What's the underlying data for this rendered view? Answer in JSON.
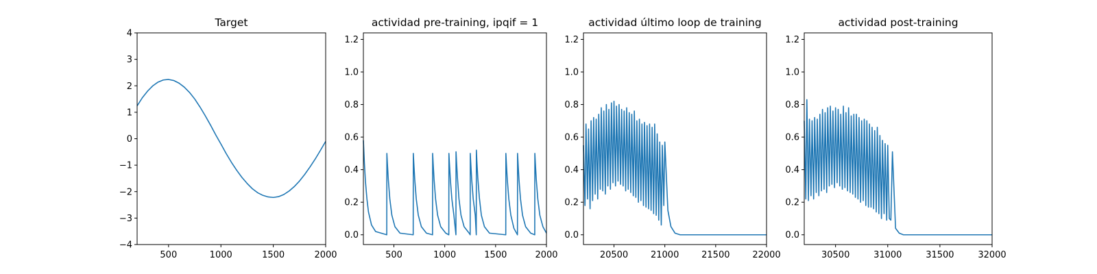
{
  "figure": {
    "background": "#ffffff"
  },
  "chart_data": [
    {
      "type": "line",
      "title": "Target",
      "xlim": [
        200,
        2000
      ],
      "ylim": [
        -4,
        4
      ],
      "x_ticks": [
        500,
        1000,
        1500,
        2000
      ],
      "y_ticks": [
        -4,
        -3,
        -2,
        -1,
        0,
        1,
        2,
        3,
        4
      ],
      "x_tick_labels": [
        "500",
        "1000",
        "1500",
        "2000"
      ],
      "y_tick_labels": [
        "−4",
        "−3",
        "−2",
        "−1",
        "0",
        "1",
        "2",
        "3",
        "4"
      ],
      "series": [
        {
          "color": "#1f77b4",
          "x": [
            200,
            250,
            300,
            350,
            400,
            450,
            500,
            550,
            600,
            650,
            700,
            750,
            800,
            850,
            900,
            950,
            1000,
            1050,
            1100,
            1150,
            1200,
            1250,
            1300,
            1350,
            1400,
            1450,
            1500,
            1550,
            1600,
            1650,
            1700,
            1750,
            1800,
            1850,
            1900,
            1950,
            2000
          ],
          "values": [
            1.24,
            1.55,
            1.8,
            2.0,
            2.14,
            2.22,
            2.24,
            2.2,
            2.1,
            1.95,
            1.75,
            1.5,
            1.2,
            0.87,
            0.52,
            0.15,
            -0.2,
            -0.56,
            -0.89,
            -1.19,
            -1.46,
            -1.69,
            -1.89,
            -2.04,
            -2.14,
            -2.2,
            -2.22,
            -2.19,
            -2.11,
            -1.98,
            -1.81,
            -1.6,
            -1.35,
            -1.07,
            -0.77,
            -0.44,
            -0.1
          ]
        }
      ]
    },
    {
      "type": "line",
      "title": "actividad pre-training, ipqif = 1",
      "xlim": [
        200,
        2000
      ],
      "ylim": [
        -0.06,
        1.24
      ],
      "x_ticks": [
        500,
        1000,
        1500,
        2000
      ],
      "y_ticks": [
        0,
        0.2,
        0.4,
        0.6,
        0.8,
        1.0,
        1.2
      ],
      "x_tick_labels": [
        "500",
        "1000",
        "1500",
        "2000"
      ],
      "y_tick_labels": [
        "0.0",
        "0.2",
        "0.4",
        "0.6",
        "0.8",
        "1.0",
        "1.2"
      ],
      "series": [
        {
          "color": "#1f77b4",
          "x": [
            200,
            210,
            220,
            235,
            250,
            280,
            320,
            430,
            431,
            436,
            445,
            460,
            480,
            510,
            560,
            690,
            691,
            696,
            705,
            720,
            740,
            770,
            820,
            880,
            881,
            886,
            895,
            910,
            930,
            960,
            1010,
            1040,
            1041,
            1046,
            1055,
            1070,
            1090,
            1110,
            1111,
            1116,
            1125,
            1140,
            1160,
            1190,
            1240,
            1250,
            1251,
            1256,
            1265,
            1280,
            1300,
            1310,
            1311,
            1316,
            1325,
            1340,
            1360,
            1390,
            1440,
            1600,
            1601,
            1606,
            1615,
            1630,
            1650,
            1680,
            1715,
            1716,
            1721,
            1730,
            1745,
            1765,
            1795,
            1845,
            1885,
            1886,
            1891,
            1900,
            1915,
            1935,
            1965,
            2000
          ],
          "values": [
            0.58,
            0.44,
            0.33,
            0.22,
            0.14,
            0.06,
            0.02,
            0.0,
            0.5,
            0.44,
            0.34,
            0.22,
            0.12,
            0.05,
            0.01,
            0.0,
            0.5,
            0.44,
            0.34,
            0.22,
            0.12,
            0.05,
            0.01,
            0.0,
            0.5,
            0.44,
            0.34,
            0.22,
            0.12,
            0.05,
            0.01,
            0.0,
            0.5,
            0.44,
            0.34,
            0.22,
            0.12,
            0.0,
            0.51,
            0.45,
            0.35,
            0.22,
            0.12,
            0.05,
            0.01,
            0.0,
            0.5,
            0.44,
            0.34,
            0.22,
            0.12,
            0.0,
            0.52,
            0.45,
            0.35,
            0.23,
            0.12,
            0.05,
            0.01,
            0.0,
            0.5,
            0.44,
            0.34,
            0.22,
            0.12,
            0.04,
            0.0,
            0.5,
            0.44,
            0.34,
            0.22,
            0.12,
            0.05,
            0.01,
            0.0,
            0.5,
            0.44,
            0.34,
            0.22,
            0.12,
            0.05,
            0.01
          ]
        }
      ]
    },
    {
      "type": "line",
      "title": "actividad último loop de training",
      "xlim": [
        20200,
        22000
      ],
      "ylim": [
        -0.06,
        1.24
      ],
      "x_ticks": [
        20500,
        21000,
        21500,
        22000
      ],
      "y_ticks": [
        0,
        0.2,
        0.4,
        0.6,
        0.8,
        1.0,
        1.2
      ],
      "x_tick_labels": [
        "20500",
        "21000",
        "21500",
        "22000"
      ],
      "y_tick_labels": [
        "0.0",
        "0.2",
        "0.4",
        "0.6",
        "0.8",
        "1.0",
        "1.2"
      ],
      "series": [
        {
          "color": "#1f77b4",
          "x": [
            20200,
            20215,
            20225,
            20240,
            20250,
            20265,
            20275,
            20290,
            20300,
            20315,
            20325,
            20340,
            20350,
            20365,
            20375,
            20390,
            20400,
            20415,
            20425,
            20440,
            20450,
            20465,
            20475,
            20490,
            20500,
            20515,
            20525,
            20540,
            20550,
            20565,
            20575,
            20590,
            20600,
            20615,
            20625,
            20640,
            20650,
            20665,
            20675,
            20690,
            20700,
            20715,
            20725,
            20740,
            20750,
            20765,
            20775,
            20790,
            20800,
            20815,
            20825,
            20840,
            20850,
            20865,
            20875,
            20890,
            20900,
            20915,
            20925,
            20940,
            20950,
            20965,
            20975,
            20990,
            21000,
            21030,
            21060,
            21100,
            21150,
            21200,
            22000
          ],
          "values": [
            0.55,
            0.18,
            0.68,
            0.22,
            0.65,
            0.16,
            0.7,
            0.21,
            0.72,
            0.25,
            0.71,
            0.22,
            0.74,
            0.28,
            0.78,
            0.27,
            0.76,
            0.25,
            0.8,
            0.3,
            0.77,
            0.28,
            0.81,
            0.32,
            0.82,
            0.3,
            0.79,
            0.33,
            0.8,
            0.31,
            0.77,
            0.3,
            0.76,
            0.27,
            0.78,
            0.28,
            0.75,
            0.26,
            0.74,
            0.24,
            0.76,
            0.23,
            0.7,
            0.2,
            0.71,
            0.21,
            0.68,
            0.18,
            0.69,
            0.17,
            0.67,
            0.16,
            0.68,
            0.15,
            0.66,
            0.13,
            0.68,
            0.12,
            0.62,
            0.09,
            0.57,
            0.06,
            0.55,
            0.18,
            0.57,
            0.15,
            0.05,
            0.01,
            0.0,
            0.0,
            0.0
          ]
        }
      ]
    },
    {
      "type": "line",
      "title": "actividad post-training",
      "xlim": [
        30200,
        32000
      ],
      "ylim": [
        -0.06,
        1.24
      ],
      "x_ticks": [
        30500,
        31000,
        31500,
        32000
      ],
      "y_ticks": [
        0,
        0.2,
        0.4,
        0.6,
        0.8,
        1.0,
        1.2
      ],
      "x_tick_labels": [
        "30500",
        "31000",
        "31500",
        "32000"
      ],
      "y_tick_labels": [
        "0.0",
        "0.2",
        "0.4",
        "0.6",
        "0.8",
        "1.0",
        "1.2"
      ],
      "series": [
        {
          "color": "#1f77b4",
          "x": [
            30200,
            30215,
            30225,
            30240,
            30250,
            30265,
            30275,
            30290,
            30300,
            30315,
            30325,
            30340,
            30350,
            30365,
            30375,
            30390,
            30400,
            30415,
            30425,
            30440,
            30450,
            30465,
            30475,
            30490,
            30500,
            30515,
            30525,
            30540,
            30550,
            30565,
            30575,
            30590,
            30600,
            30615,
            30625,
            30640,
            30650,
            30665,
            30675,
            30690,
            30700,
            30715,
            30725,
            30740,
            30750,
            30765,
            30775,
            30790,
            30800,
            30815,
            30825,
            30840,
            30850,
            30865,
            30875,
            30890,
            30900,
            30915,
            30925,
            30940,
            30950,
            30965,
            30975,
            30990,
            31000,
            31015,
            31030,
            31045,
            31075,
            31110,
            31150,
            31200,
            32000
          ],
          "values": [
            0.7,
            0.22,
            0.83,
            0.21,
            0.71,
            0.24,
            0.7,
            0.22,
            0.72,
            0.26,
            0.71,
            0.24,
            0.74,
            0.27,
            0.77,
            0.28,
            0.75,
            0.26,
            0.78,
            0.3,
            0.79,
            0.31,
            0.76,
            0.29,
            0.78,
            0.32,
            0.77,
            0.3,
            0.74,
            0.28,
            0.79,
            0.29,
            0.75,
            0.27,
            0.78,
            0.26,
            0.73,
            0.25,
            0.74,
            0.23,
            0.74,
            0.22,
            0.72,
            0.2,
            0.7,
            0.21,
            0.71,
            0.18,
            0.7,
            0.17,
            0.68,
            0.17,
            0.66,
            0.16,
            0.64,
            0.14,
            0.66,
            0.13,
            0.61,
            0.1,
            0.58,
            0.13,
            0.56,
            0.09,
            0.55,
            0.1,
            0.09,
            0.51,
            0.04,
            0.01,
            0.0,
            0.0,
            0.0
          ]
        }
      ]
    }
  ]
}
